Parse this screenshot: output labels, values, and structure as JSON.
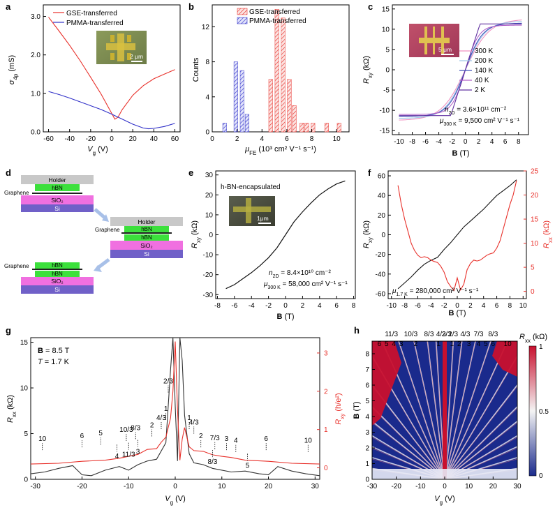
{
  "panels": {
    "a": {
      "letter": "a",
      "xlabel": "V",
      "xlabel_sub": "g",
      "xlabel_unit": " (V)",
      "ylabel": "σ",
      "ylabel_sub": "4p",
      "ylabel_unit": " (mS)",
      "scale_bar": "2 μm"
    },
    "b": {
      "letter": "b",
      "xlabel": "μ",
      "xlabel_sub": "FE",
      "xlabel_unit": " (10³ cm² V⁻¹ s⁻¹)",
      "ylabel": "Counts"
    },
    "c": {
      "letter": "c",
      "xlabel": "B",
      "xlabel_unit": " (T)",
      "ylabel": "R",
      "ylabel_sub": "xy",
      "ylabel_unit": " (kΩ)",
      "scale_bar": "5 μm",
      "annotation1": "n",
      "annotation1_sub": "2D",
      "annotation1_rest": " = 3.6×10¹¹ cm⁻²",
      "annotation2": "μ",
      "annotation2_sub": "300 K",
      "annotation2_rest": " = 9,500 cm² V⁻¹ s⁻¹"
    },
    "d": {
      "letter": "d",
      "stack1": [
        "Holder",
        "hBN",
        "SiO₂",
        "Si"
      ],
      "stack2": [
        "Holder",
        "hBN",
        "hBN",
        "SiO₂",
        "Si"
      ],
      "stack3": [
        "hBN",
        "hBN",
        "SiO₂",
        "Si"
      ],
      "graphene": "Graphene"
    },
    "e": {
      "letter": "e",
      "title": "h-BN-encapsulated",
      "xlabel": "B",
      "xlabel_unit": " (T)",
      "ylabel": "R",
      "ylabel_sub": "xy",
      "ylabel_unit": " (kΩ)",
      "scale_bar": "1μm",
      "annotation1": "n",
      "annotation1_sub": "2D",
      "annotation1_rest": " = 8.4×10¹⁰ cm⁻²",
      "annotation2": "μ",
      "annotation2_sub": "300 K",
      "annotation2_rest": " = 58,000 cm² V⁻¹ s⁻¹"
    },
    "f": {
      "letter": "f",
      "xlabel": "B",
      "xlabel_unit": " (T)",
      "ylabel_left": "R",
      "ylabel_left_sub": "xy",
      "ylabel_left_unit": " (kΩ)",
      "ylabel_right": "R",
      "ylabel_right_sub": "xx",
      "ylabel_right_unit": " (kΩ)",
      "annotation": "μ",
      "annotation_sub": "1.7 K",
      "annotation_rest": " = 280,000 cm² V⁻¹ s⁻¹"
    },
    "g": {
      "letter": "g",
      "xlabel": "V",
      "xlabel_sub": "g",
      "xlabel_unit": " (V)",
      "ylabel_left": "R",
      "ylabel_left_sub": "xx",
      "ylabel_left_unit": " (kΩ)",
      "ylabel_right": "R",
      "ylabel_right_sub": "xy",
      "ylabel_right_unit": " (h/e²)",
      "cond1": "B",
      "cond1_rest": " = 8.5 T",
      "cond2": "T",
      "cond2_rest": " = 1.7 K"
    },
    "h": {
      "letter": "h",
      "xlabel": "V",
      "xlabel_sub": "g",
      "xlabel_unit": " (V)",
      "ylabel": "B",
      "ylabel_unit": " (T)",
      "cbar_label": "R",
      "cbar_label_sub": "xx",
      "cbar_label_unit": " (kΩ)",
      "cbar_ticks": [
        "1",
        "0.5",
        "0"
      ],
      "top_labels_row1": [
        "11/3",
        "10/3",
        "8/3",
        "4/3",
        "2/3",
        "2/3",
        "4/3",
        "7/3",
        "8/3"
      ],
      "top_labels_row2": [
        "6",
        "5",
        "4",
        "3",
        "2",
        "1",
        "1",
        "2",
        "3",
        "4",
        "5",
        "6",
        "10"
      ]
    }
  },
  "chart_data": [
    {
      "panel": "a",
      "type": "line",
      "xlim": [
        -65,
        65
      ],
      "ylim": [
        0,
        3.3
      ],
      "xticks": [
        -60,
        -40,
        -20,
        0,
        20,
        40,
        60
      ],
      "yticks": [
        0.0,
        1.0,
        2.0,
        3.0
      ],
      "ytick_labels": [
        "0.0",
        "1.0",
        "2.0",
        "3.0"
      ],
      "series": [
        {
          "name": "GSE-transferred",
          "color": "#e8302a",
          "x": [
            -60,
            -50,
            -40,
            -30,
            -20,
            -10,
            0,
            3,
            6,
            10,
            20,
            30,
            40,
            50,
            60
          ],
          "y": [
            2.98,
            2.62,
            2.25,
            1.85,
            1.42,
            0.98,
            0.48,
            0.33,
            0.38,
            0.58,
            0.95,
            1.2,
            1.38,
            1.5,
            1.62
          ]
        },
        {
          "name": "PMMA-transferred",
          "color": "#3030c8",
          "x": [
            -60,
            -50,
            -40,
            -30,
            -20,
            -10,
            0,
            10,
            20,
            30,
            35,
            40,
            50,
            60
          ],
          "y": [
            1.05,
            0.97,
            0.88,
            0.78,
            0.68,
            0.58,
            0.46,
            0.33,
            0.2,
            0.1,
            0.08,
            0.09,
            0.14,
            0.22
          ]
        }
      ]
    },
    {
      "panel": "b",
      "type": "bar",
      "xlim": [
        0,
        11
      ],
      "ylim": [
        0,
        14.5
      ],
      "xticks": [
        0,
        2,
        4,
        6,
        8,
        10
      ],
      "yticks": [
        0,
        4,
        8,
        12
      ],
      "series": [
        {
          "name": "GSE-transferred",
          "color": "#e8302a",
          "x": [
            4.7,
            5.2,
            5.7,
            6.2,
            6.6,
            7.2,
            7.6,
            8.1,
            9.2,
            10.2
          ],
          "values": [
            6,
            14,
            13,
            6,
            3,
            1,
            1,
            1,
            1,
            1
          ]
        },
        {
          "name": "PMMA-transferred",
          "color": "#3030c8",
          "x": [
            1.0,
            1.9,
            2.4,
            2.8
          ],
          "values": [
            1,
            8,
            7,
            2
          ]
        }
      ]
    },
    {
      "panel": "c",
      "type": "line",
      "xlim": [
        -11,
        9.5
      ],
      "ylim": [
        -16,
        16
      ],
      "xticks": [
        -10,
        -8,
        -6,
        -4,
        -2,
        0,
        2,
        4,
        6,
        8
      ],
      "yticks": [
        -15,
        -10,
        -5,
        0,
        5,
        10,
        15
      ],
      "series": [
        {
          "name": "300 K",
          "color": "#f090c0",
          "sat": 12.5,
          "b0": 3.6,
          "kind": "tanh"
        },
        {
          "name": "200 K",
          "color": "#a0c8e8",
          "sat": 12.0,
          "b0": 3.0,
          "kind": "tanh"
        },
        {
          "name": "140 K",
          "color": "#4050b8",
          "sat": 11.5,
          "b0": 2.6,
          "kind": "tanh"
        },
        {
          "name": "40 K",
          "color": "#b060c8",
          "sat": 11.0,
          "b0": 2.0,
          "kind": "tanh"
        },
        {
          "name": "2 K",
          "color": "#6030a0",
          "sat": 11.3,
          "b0": 2.2,
          "kind": "lin"
        }
      ]
    },
    {
      "panel": "e",
      "type": "line",
      "xlim": [
        -8.2,
        8.2
      ],
      "ylim": [
        -32,
        32
      ],
      "xticks": [
        -8,
        -6,
        -4,
        -2,
        0,
        2,
        4,
        6,
        8
      ],
      "yticks": [
        -30,
        -20,
        -10,
        0,
        10,
        20,
        30
      ],
      "series": [
        {
          "name": "R_xy",
          "color": "#111111",
          "x": [
            -7,
            -6,
            -5,
            -4,
            -3,
            -2,
            -1,
            0,
            1,
            2,
            3,
            4,
            5,
            6,
            7
          ],
          "y": [
            -27,
            -25,
            -22,
            -19,
            -15.5,
            -11.5,
            -6.5,
            0,
            6.5,
            11.5,
            16,
            20,
            23,
            25.5,
            27
          ]
        }
      ]
    },
    {
      "panel": "f",
      "type": "line",
      "xlim": [
        -10.5,
        10.5
      ],
      "ylim_left": [
        -65,
        65
      ],
      "ylim_right": [
        -1.5,
        25
      ],
      "xticks": [
        -10,
        -8,
        -6,
        -4,
        -2,
        0,
        2,
        4,
        6,
        8,
        10
      ],
      "yticks_left": [
        -60,
        -40,
        -20,
        0,
        20,
        40,
        60
      ],
      "yticks_right": [
        0,
        5,
        10,
        15,
        20,
        25
      ],
      "series": [
        {
          "name": "R_xy",
          "axis": "left",
          "color": "#111111",
          "x": [
            -9,
            -8,
            -7,
            -6,
            -5,
            -4,
            -3,
            -2,
            -1,
            0,
            1,
            2,
            3,
            4,
            5,
            6,
            7,
            8,
            9
          ],
          "y": [
            -55,
            -49,
            -43,
            -36,
            -30,
            -26,
            -23,
            -15,
            -8,
            0,
            8,
            14,
            20,
            26,
            33,
            40,
            45,
            50,
            56
          ]
        },
        {
          "name": "R_xx",
          "axis": "right",
          "color": "#e8302a",
          "x": [
            -9,
            -8.5,
            -8,
            -7.5,
            -7,
            -6.5,
            -6,
            -5.5,
            -5,
            -4.5,
            -4,
            -3.5,
            -3,
            -2.5,
            -2,
            -1.5,
            -1,
            -0.5,
            0,
            0.5,
            1,
            1.5,
            2,
            2.5,
            3,
            3.5,
            4,
            4.5,
            5,
            5.5,
            6,
            6.5,
            7,
            7.5,
            8,
            8.5,
            9
          ],
          "y": [
            22,
            18,
            15,
            12.5,
            10,
            8.5,
            7.5,
            7,
            7.2,
            7,
            6.5,
            6.2,
            6.0,
            5.2,
            4.0,
            2.0,
            1.0,
            0.2,
            2.8,
            0.3,
            1.5,
            4.5,
            5.8,
            6.5,
            6.3,
            6.5,
            7.0,
            7.5,
            7.8,
            8.0,
            9.0,
            10.5,
            13.0,
            15.5,
            18,
            20,
            23
          ]
        }
      ]
    },
    {
      "panel": "g",
      "type": "line",
      "xlim": [
        -31,
        31
      ],
      "ylim_left": [
        0,
        15.5
      ],
      "ylim_right": [
        -0.3,
        3.4
      ],
      "xticks": [
        -30,
        -20,
        -10,
        0,
        10,
        20,
        30
      ],
      "yticks_left": [
        0,
        5,
        10,
        15
      ],
      "yticks_right": [
        0,
        1,
        2,
        3
      ],
      "series": [
        {
          "name": "R_xx",
          "axis": "left",
          "color": "#333333",
          "x": [
            -31,
            -28,
            -25,
            -22,
            -20,
            -18,
            -15,
            -12,
            -10,
            -8,
            -6,
            -4,
            -2,
            -1,
            -0.5,
            0,
            0.5,
            1,
            1.5,
            2,
            3,
            4,
            6,
            8,
            10,
            12,
            15,
            18,
            20,
            22,
            25,
            28,
            31
          ],
          "y": [
            0.6,
            0.8,
            1.2,
            1.5,
            0.5,
            0.4,
            1.0,
            1.4,
            1.0,
            1.6,
            2.0,
            2.2,
            4.0,
            12,
            15.5,
            8,
            2,
            15.5,
            13,
            7,
            2.8,
            1.8,
            1.6,
            1.2,
            1.0,
            0.8,
            0.9,
            0.6,
            0.5,
            1.4,
            0.9,
            0.6,
            0.4
          ]
        },
        {
          "name": "R_xy",
          "axis": "right",
          "color": "#e8302a",
          "x": [
            -31,
            -25,
            -20,
            -15,
            -12,
            -10,
            -8,
            -6,
            -4,
            -3,
            -2,
            -1,
            -0.5,
            0,
            0.5,
            1,
            1.5,
            2,
            3,
            4,
            6,
            8,
            10,
            12,
            15,
            20,
            25,
            31
          ],
          "y": [
            0.1,
            0.12,
            0.17,
            0.2,
            0.25,
            0.3,
            0.35,
            0.48,
            0.5,
            0.67,
            0.8,
            1.3,
            2.0,
            3.3,
            1.5,
            0.2,
            0.75,
            1.05,
            0.55,
            0.45,
            0.43,
            0.34,
            0.3,
            0.27,
            0.2,
            0.17,
            0.12,
            0.1
          ]
        }
      ],
      "annotations": [
        {
          "t": "10",
          "x": -28.5,
          "y": 3.2,
          "up": true
        },
        {
          "t": "6",
          "x": -20,
          "y": 3.5,
          "up": true
        },
        {
          "t": "5",
          "x": -16,
          "y": 3.8,
          "up": true
        },
        {
          "t": "10/3",
          "x": -10.5,
          "y": 4.2,
          "up": true
        },
        {
          "t": "8/3",
          "x": -8.5,
          "y": 4.4,
          "up": true
        },
        {
          "t": "2",
          "x": -5,
          "y": 4.7,
          "up": true
        },
        {
          "t": "4/3",
          "x": -3.0,
          "y": 5.5,
          "up": true
        },
        {
          "t": "1",
          "x": -2.0,
          "y": 6.5,
          "up": true
        },
        {
          "t": "2/3",
          "x": -1.5,
          "y": 9.5,
          "up": true
        },
        {
          "t": "4",
          "x": -12.5,
          "y": 3.8,
          "up": false
        },
        {
          "t": "11/3",
          "x": -10,
          "y": 4.0,
          "up": false
        },
        {
          "t": "3",
          "x": -8,
          "y": 4.3,
          "up": false
        },
        {
          "t": "1",
          "x": 3,
          "y": 5.5,
          "up": true
        },
        {
          "t": "4/3",
          "x": 4,
          "y": 5.0,
          "up": true
        },
        {
          "t": "2",
          "x": 5.5,
          "y": 3.5,
          "up": true
        },
        {
          "t": "7/3",
          "x": 8.5,
          "y": 3.3,
          "up": true
        },
        {
          "t": "3",
          "x": 11,
          "y": 3.2,
          "up": true
        },
        {
          "t": "4",
          "x": 13,
          "y": 3.0,
          "up": true
        },
        {
          "t": "8/3",
          "x": 8.0,
          "y": 3.2,
          "up": false
        },
        {
          "t": "5",
          "x": 15.5,
          "y": 2.8,
          "up": false
        },
        {
          "t": "6",
          "x": 19.5,
          "y": 3.2,
          "up": true
        },
        {
          "t": "10",
          "x": 28.5,
          "y": 3.0,
          "up": true
        }
      ]
    },
    {
      "panel": "h",
      "type": "heatmap",
      "xlim": [
        -30,
        30
      ],
      "ylim": [
        0,
        8.8
      ],
      "xticks": [
        -30,
        -20,
        -10,
        0,
        10,
        20,
        30
      ],
      "yticks": [
        0,
        1,
        2,
        3,
        4,
        5,
        6,
        7,
        8
      ],
      "clim": [
        0,
        1
      ]
    }
  ]
}
